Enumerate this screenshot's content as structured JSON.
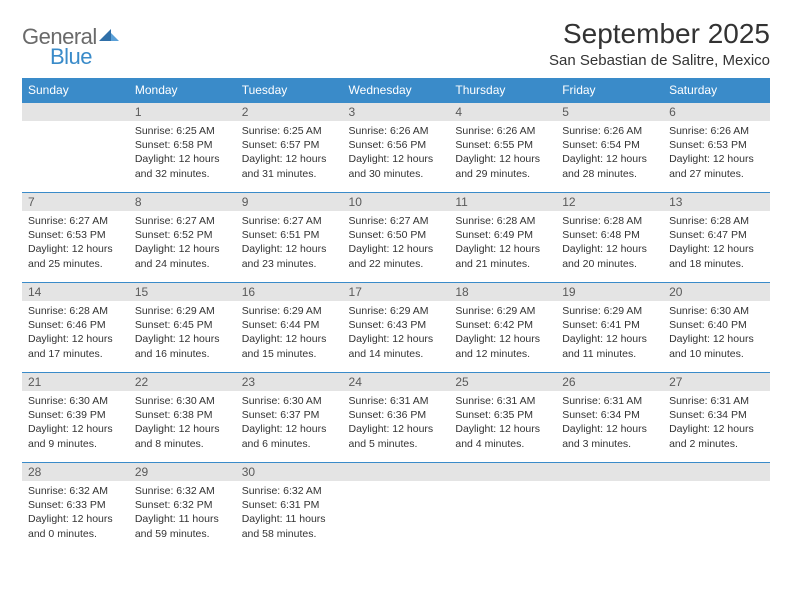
{
  "logo": {
    "general": "General",
    "blue": "Blue"
  },
  "title": "September 2025",
  "location": "San Sebastian de Salitre, Mexico",
  "colors": {
    "header_bg": "#3a8bc9",
    "header_text": "#ffffff",
    "daynum_bg": "#e4e4e4",
    "daynum_text": "#5a5a5a",
    "body_text": "#333333",
    "rule": "#3a8bc9"
  },
  "day_headers": [
    "Sunday",
    "Monday",
    "Tuesday",
    "Wednesday",
    "Thursday",
    "Friday",
    "Saturday"
  ],
  "weeks": [
    [
      null,
      {
        "n": "1",
        "sr": "Sunrise: 6:25 AM",
        "ss": "Sunset: 6:58 PM",
        "d1": "Daylight: 12 hours",
        "d2": "and 32 minutes."
      },
      {
        "n": "2",
        "sr": "Sunrise: 6:25 AM",
        "ss": "Sunset: 6:57 PM",
        "d1": "Daylight: 12 hours",
        "d2": "and 31 minutes."
      },
      {
        "n": "3",
        "sr": "Sunrise: 6:26 AM",
        "ss": "Sunset: 6:56 PM",
        "d1": "Daylight: 12 hours",
        "d2": "and 30 minutes."
      },
      {
        "n": "4",
        "sr": "Sunrise: 6:26 AM",
        "ss": "Sunset: 6:55 PM",
        "d1": "Daylight: 12 hours",
        "d2": "and 29 minutes."
      },
      {
        "n": "5",
        "sr": "Sunrise: 6:26 AM",
        "ss": "Sunset: 6:54 PM",
        "d1": "Daylight: 12 hours",
        "d2": "and 28 minutes."
      },
      {
        "n": "6",
        "sr": "Sunrise: 6:26 AM",
        "ss": "Sunset: 6:53 PM",
        "d1": "Daylight: 12 hours",
        "d2": "and 27 minutes."
      }
    ],
    [
      {
        "n": "7",
        "sr": "Sunrise: 6:27 AM",
        "ss": "Sunset: 6:53 PM",
        "d1": "Daylight: 12 hours",
        "d2": "and 25 minutes."
      },
      {
        "n": "8",
        "sr": "Sunrise: 6:27 AM",
        "ss": "Sunset: 6:52 PM",
        "d1": "Daylight: 12 hours",
        "d2": "and 24 minutes."
      },
      {
        "n": "9",
        "sr": "Sunrise: 6:27 AM",
        "ss": "Sunset: 6:51 PM",
        "d1": "Daylight: 12 hours",
        "d2": "and 23 minutes."
      },
      {
        "n": "10",
        "sr": "Sunrise: 6:27 AM",
        "ss": "Sunset: 6:50 PM",
        "d1": "Daylight: 12 hours",
        "d2": "and 22 minutes."
      },
      {
        "n": "11",
        "sr": "Sunrise: 6:28 AM",
        "ss": "Sunset: 6:49 PM",
        "d1": "Daylight: 12 hours",
        "d2": "and 21 minutes."
      },
      {
        "n": "12",
        "sr": "Sunrise: 6:28 AM",
        "ss": "Sunset: 6:48 PM",
        "d1": "Daylight: 12 hours",
        "d2": "and 20 minutes."
      },
      {
        "n": "13",
        "sr": "Sunrise: 6:28 AM",
        "ss": "Sunset: 6:47 PM",
        "d1": "Daylight: 12 hours",
        "d2": "and 18 minutes."
      }
    ],
    [
      {
        "n": "14",
        "sr": "Sunrise: 6:28 AM",
        "ss": "Sunset: 6:46 PM",
        "d1": "Daylight: 12 hours",
        "d2": "and 17 minutes."
      },
      {
        "n": "15",
        "sr": "Sunrise: 6:29 AM",
        "ss": "Sunset: 6:45 PM",
        "d1": "Daylight: 12 hours",
        "d2": "and 16 minutes."
      },
      {
        "n": "16",
        "sr": "Sunrise: 6:29 AM",
        "ss": "Sunset: 6:44 PM",
        "d1": "Daylight: 12 hours",
        "d2": "and 15 minutes."
      },
      {
        "n": "17",
        "sr": "Sunrise: 6:29 AM",
        "ss": "Sunset: 6:43 PM",
        "d1": "Daylight: 12 hours",
        "d2": "and 14 minutes."
      },
      {
        "n": "18",
        "sr": "Sunrise: 6:29 AM",
        "ss": "Sunset: 6:42 PM",
        "d1": "Daylight: 12 hours",
        "d2": "and 12 minutes."
      },
      {
        "n": "19",
        "sr": "Sunrise: 6:29 AM",
        "ss": "Sunset: 6:41 PM",
        "d1": "Daylight: 12 hours",
        "d2": "and 11 minutes."
      },
      {
        "n": "20",
        "sr": "Sunrise: 6:30 AM",
        "ss": "Sunset: 6:40 PM",
        "d1": "Daylight: 12 hours",
        "d2": "and 10 minutes."
      }
    ],
    [
      {
        "n": "21",
        "sr": "Sunrise: 6:30 AM",
        "ss": "Sunset: 6:39 PM",
        "d1": "Daylight: 12 hours",
        "d2": "and 9 minutes."
      },
      {
        "n": "22",
        "sr": "Sunrise: 6:30 AM",
        "ss": "Sunset: 6:38 PM",
        "d1": "Daylight: 12 hours",
        "d2": "and 8 minutes."
      },
      {
        "n": "23",
        "sr": "Sunrise: 6:30 AM",
        "ss": "Sunset: 6:37 PM",
        "d1": "Daylight: 12 hours",
        "d2": "and 6 minutes."
      },
      {
        "n": "24",
        "sr": "Sunrise: 6:31 AM",
        "ss": "Sunset: 6:36 PM",
        "d1": "Daylight: 12 hours",
        "d2": "and 5 minutes."
      },
      {
        "n": "25",
        "sr": "Sunrise: 6:31 AM",
        "ss": "Sunset: 6:35 PM",
        "d1": "Daylight: 12 hours",
        "d2": "and 4 minutes."
      },
      {
        "n": "26",
        "sr": "Sunrise: 6:31 AM",
        "ss": "Sunset: 6:34 PM",
        "d1": "Daylight: 12 hours",
        "d2": "and 3 minutes."
      },
      {
        "n": "27",
        "sr": "Sunrise: 6:31 AM",
        "ss": "Sunset: 6:34 PM",
        "d1": "Daylight: 12 hours",
        "d2": "and 2 minutes."
      }
    ],
    [
      {
        "n": "28",
        "sr": "Sunrise: 6:32 AM",
        "ss": "Sunset: 6:33 PM",
        "d1": "Daylight: 12 hours",
        "d2": "and 0 minutes."
      },
      {
        "n": "29",
        "sr": "Sunrise: 6:32 AM",
        "ss": "Sunset: 6:32 PM",
        "d1": "Daylight: 11 hours",
        "d2": "and 59 minutes."
      },
      {
        "n": "30",
        "sr": "Sunrise: 6:32 AM",
        "ss": "Sunset: 6:31 PM",
        "d1": "Daylight: 11 hours",
        "d2": "and 58 minutes."
      },
      null,
      null,
      null,
      null
    ]
  ]
}
